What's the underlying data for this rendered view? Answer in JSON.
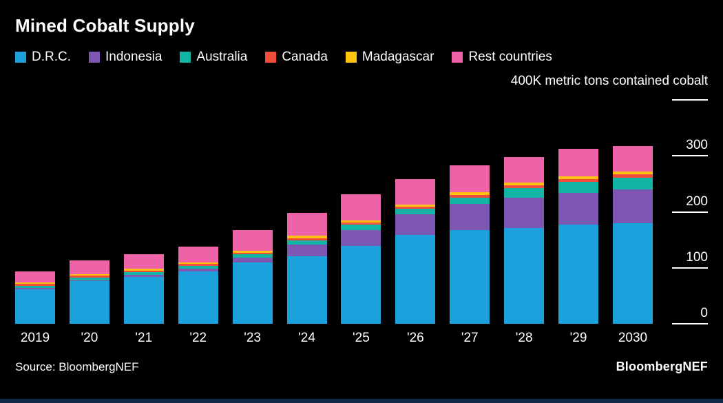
{
  "title": "Mined Cobalt Supply",
  "unit_label": "400K metric tons contained cobalt",
  "source": "Source: BloombergNEF",
  "brand": "BloombergNEF",
  "colors": {
    "background": "#000000",
    "text": "#ffffff"
  },
  "chart_data": {
    "type": "bar",
    "stacked": true,
    "title": "Mined Cobalt Supply",
    "ylabel": "400K metric tons contained cobalt",
    "ylim": [
      0,
      400
    ],
    "yticks": [
      0,
      100,
      200,
      300
    ],
    "grid": false,
    "axis_side": "right",
    "legend_position": "top",
    "categories": [
      "2019",
      "'20",
      "'21",
      "'22",
      "'23",
      "'24",
      "'25",
      "'26",
      "'27",
      "'28",
      "'29",
      "2030"
    ],
    "series": [
      {
        "name": "D.R.C.",
        "color": "#1ba2dc",
        "values": [
          62,
          76,
          84,
          94,
          110,
          121,
          139,
          159,
          167,
          171,
          177,
          180
        ]
      },
      {
        "name": "Indonesia",
        "color": "#7e57b2",
        "values": [
          2,
          2,
          3,
          4,
          8,
          21,
          29,
          37,
          47,
          54,
          57,
          60
        ]
      },
      {
        "name": "Australia",
        "color": "#12b5a5",
        "values": [
          4,
          5,
          5,
          6,
          6,
          7,
          9,
          9,
          11,
          17,
          19,
          21
        ]
      },
      {
        "name": "Canada",
        "color": "#f04e3a",
        "values": [
          3,
          3,
          3,
          3,
          3,
          4,
          4,
          4,
          5,
          5,
          6,
          6
        ]
      },
      {
        "name": "Madagascar",
        "color": "#ffc20e",
        "values": [
          3,
          3,
          3,
          3,
          4,
          4,
          4,
          4,
          5,
          5,
          5,
          5
        ]
      },
      {
        "name": "Rest countries",
        "color": "#ee62a7",
        "values": [
          20,
          24,
          26,
          28,
          37,
          41,
          47,
          45,
          48,
          46,
          49,
          46
        ]
      }
    ]
  }
}
